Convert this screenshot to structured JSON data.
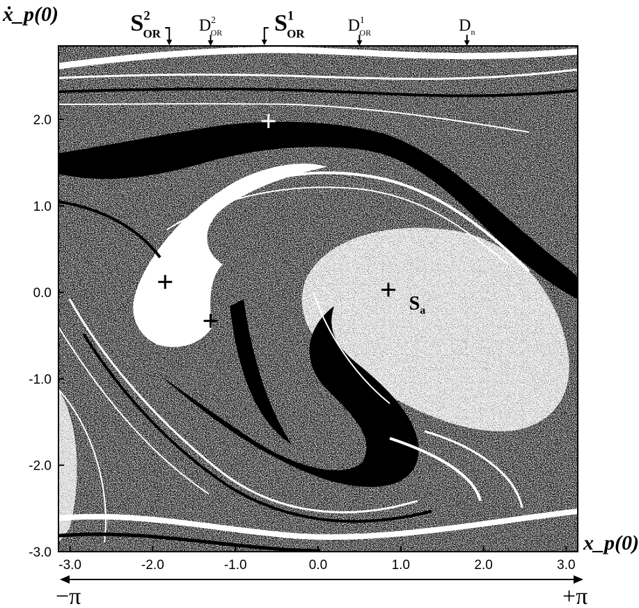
{
  "chart_data": {
    "type": "scatter",
    "description_type": "basin-of-attraction map (phase space)",
    "xlabel": "x_p(0)",
    "ylabel": "ẋ_p(0)",
    "xlim": [
      -3.14,
      3.14
    ],
    "ylim": [
      -3.0,
      2.85
    ],
    "xticks": [
      "-3.0",
      "-2.0",
      "-1.0",
      "0.0",
      "1.0",
      "2.0",
      "3.0"
    ],
    "yticks": [
      "2.0",
      "1.0",
      "0.0",
      "-1.0",
      "-2.0",
      "-3.0"
    ],
    "xtick_values": [
      -3,
      -2,
      -1,
      0,
      1,
      2,
      3
    ],
    "ytick_values": [
      2,
      1,
      0,
      -1,
      -2,
      -3
    ],
    "range_labels": {
      "left": "−π",
      "right": "+π"
    },
    "markers": [
      {
        "x": -0.6,
        "y": 1.98,
        "color": "#ffffff"
      },
      {
        "x": -1.85,
        "y": 0.12,
        "color": "#000000"
      },
      {
        "x": -1.3,
        "y": -0.33,
        "color": "#000000"
      },
      {
        "x": 0.85,
        "y": 0.03,
        "color": "#000000"
      }
    ],
    "point_label": {
      "main": "S",
      "sub": "a",
      "x": 1.1,
      "y": -0.2
    },
    "top_annotations": [
      {
        "main": "S",
        "sup": "2",
        "sub": "OR",
        "x": -1.8,
        "arrow": "hook"
      },
      {
        "main": "D",
        "sup": "2",
        "sub": "OR",
        "x": -1.3,
        "arrow": "down"
      },
      {
        "main": "S",
        "sup": "1",
        "sub": "OR",
        "x": -0.65,
        "arrow": "hook"
      },
      {
        "main": "D",
        "sup": "1",
        "sub": "OR",
        "x": 0.5,
        "arrow": "down"
      },
      {
        "main": "D",
        "sup": "",
        "sub": "n",
        "x": 1.8,
        "arrow": "down"
      }
    ],
    "grid": false,
    "legend": "none",
    "colors": {
      "basin_a": "#000000",
      "basin_b": "#ffffff",
      "axis": "#000000"
    }
  }
}
